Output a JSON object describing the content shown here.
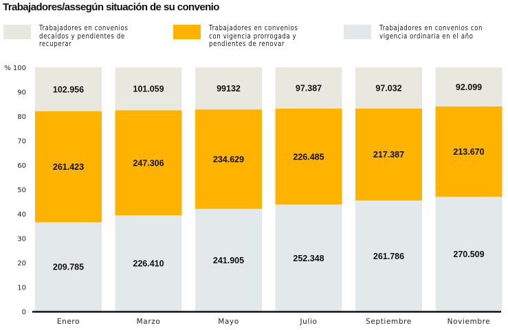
{
  "chart_data": {
    "type": "bar",
    "stacked": "percent",
    "title": "Trabajadores/assegún situación de su convenio",
    "xlabel": "",
    "ylabel": "",
    "ylim": [
      0,
      100
    ],
    "y_ticks": [
      "0",
      "10",
      "20",
      "30",
      "40",
      "50",
      "60",
      "70",
      "80",
      "90",
      "% 100"
    ],
    "grid": false,
    "legend_position": "top",
    "categories": [
      "Enero",
      "Marzo",
      "Mayo",
      "Julio",
      "Septiembre",
      "Noviembre"
    ],
    "series": [
      {
        "name": "Trabajadores en convenios con vigencia ordinaria en el año",
        "color": "#e3e9ea",
        "values": [
          209785,
          226410,
          241905,
          252348,
          261786,
          270509
        ],
        "labels": [
          "209.785",
          "226.410",
          "241.905",
          "252.348",
          "261.786",
          "270.509"
        ]
      },
      {
        "name": "Trabajadores en convenios con vigencia prorrogada y pendientes de renovar",
        "color": "#fdb300",
        "values": [
          261423,
          247306,
          234629,
          226485,
          217387,
          213670
        ],
        "labels": [
          "261.423",
          "247.306",
          "234.629",
          "226.485",
          "217.387",
          "213.670"
        ]
      },
      {
        "name": "Trabajadores en convenios decaídos y pendientes de recuperar",
        "color": "#e8e8de",
        "values": [
          102956,
          101059,
          99132,
          97387,
          97032,
          92099
        ],
        "labels": [
          "102.956",
          "101.059",
          "99132",
          "97.387",
          "97.032",
          "92.099"
        ]
      }
    ]
  },
  "legend": [
    {
      "label": "Trabajadores en convenios\ndecaídos y pendientes de\nrecuperar",
      "color": "#e8e8de"
    },
    {
      "label": "Trabajadores en convenios\ncon vigencia prorrogada y\npendientes de renovar",
      "color": "#fdb300"
    },
    {
      "label": "Trabajadores en convenios con\nvigencia ordinaria en el año",
      "color": "#e3e9ea"
    }
  ]
}
